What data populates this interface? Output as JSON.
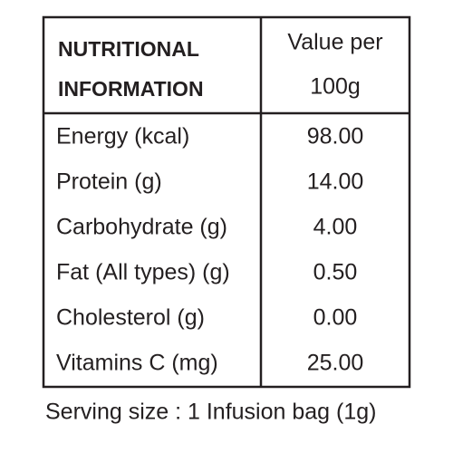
{
  "header": {
    "left": [
      "NUTRITIONAL",
      "INFORMATION"
    ],
    "right": [
      "Value per",
      "100g"
    ]
  },
  "rows": [
    [
      "Energy (kcal)",
      "98.00"
    ],
    [
      "Protein (g)",
      "14.00"
    ],
    [
      "Carbohydrate (g)",
      "4.00"
    ],
    [
      "Fat (All types) (g)",
      "0.50"
    ],
    [
      "Cholesterol (g)",
      "0.00"
    ],
    [
      "Vitamins C (mg)",
      "25.00"
    ]
  ],
  "footer": "Serving size : 1 Infusion bag (1g)"
}
